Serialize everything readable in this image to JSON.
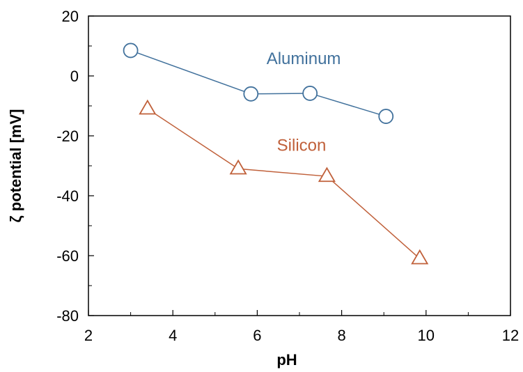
{
  "chart_data": {
    "type": "line",
    "title": "",
    "xlabel": "pH",
    "ylabel": "ζ potential [mV]",
    "xlim": [
      2,
      12
    ],
    "ylim": [
      -80,
      20
    ],
    "x_ticks": [
      "2",
      "4",
      "6",
      "8",
      "10",
      "12"
    ],
    "y_ticks": [
      "20",
      "0",
      "-20",
      "-40",
      "-60",
      "-80"
    ],
    "grid": false,
    "legend": "none",
    "series": [
      {
        "name": "Aluminum",
        "color": "#41719c",
        "marker": "circle",
        "x": [
          3.0,
          5.85,
          7.25,
          9.05
        ],
        "y": [
          8.5,
          -6.0,
          -5.8,
          -13.5
        ]
      },
      {
        "name": "Silicon",
        "color": "#c0603a",
        "marker": "triangle",
        "x": [
          3.4,
          5.55,
          7.65,
          9.85
        ],
        "y": [
          -11.0,
          -31.0,
          -33.5,
          -61.0
        ]
      }
    ],
    "annotations": [
      {
        "text": "Aluminum",
        "series": "Aluminum",
        "x": 7.1,
        "y": 4.0
      },
      {
        "text": "Silicon",
        "series": "Silicon",
        "x": 7.05,
        "y": -25.0
      }
    ]
  }
}
